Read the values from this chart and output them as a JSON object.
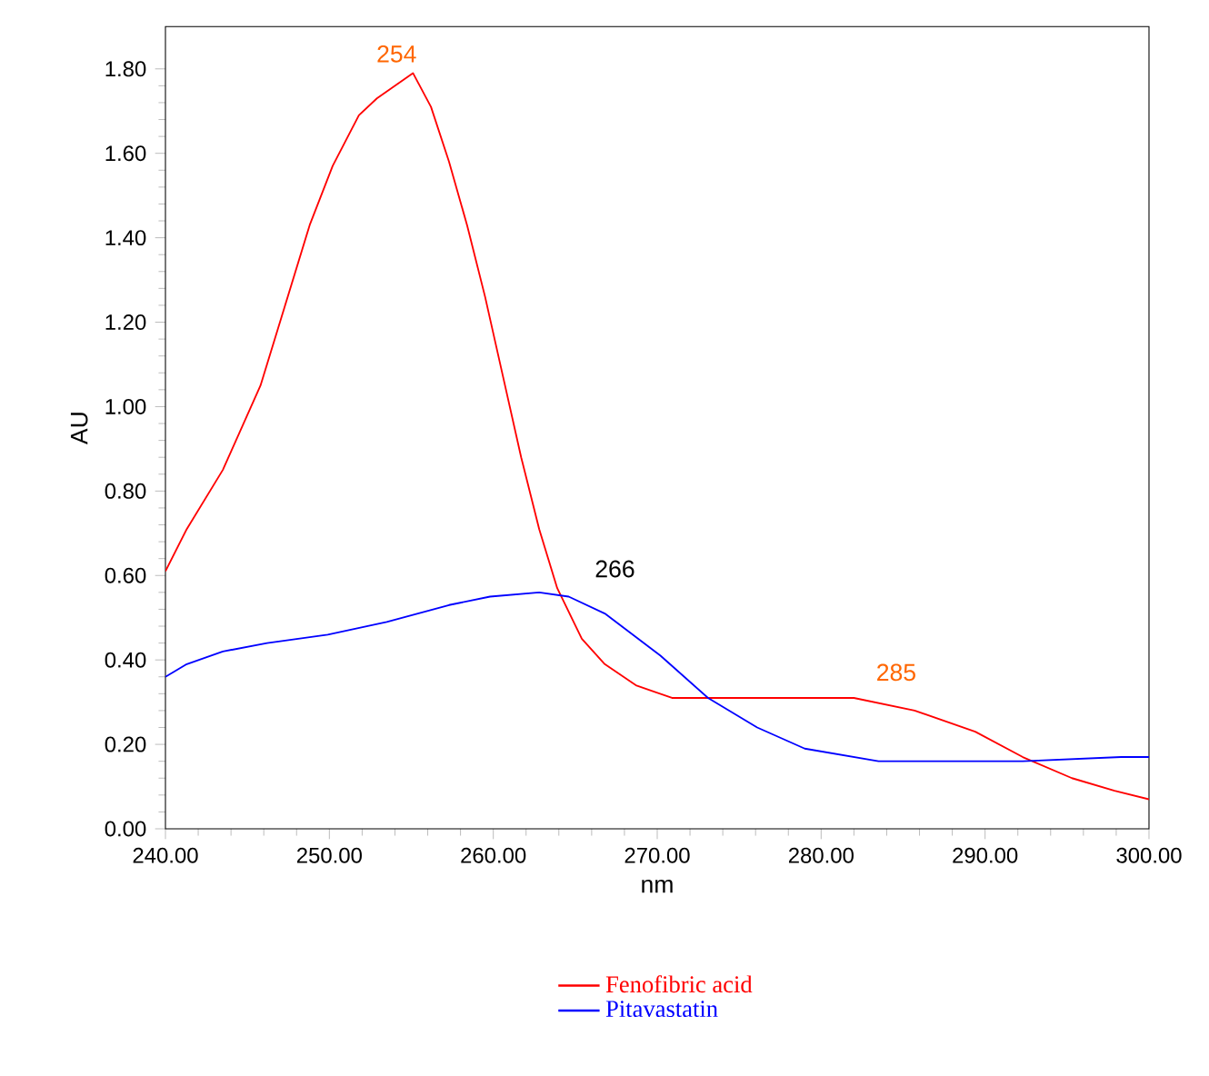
{
  "chart_data": {
    "type": "line",
    "xlabel": "nm",
    "ylabel": "AU",
    "xlim": [
      240,
      300
    ],
    "ylim": [
      0,
      1.9
    ],
    "xticks": [
      {
        "value": 240,
        "label": "240.00"
      },
      {
        "value": 250,
        "label": "250.00"
      },
      {
        "value": 260,
        "label": "260.00"
      },
      {
        "value": 270,
        "label": "270.00"
      },
      {
        "value": 280,
        "label": "280.00"
      },
      {
        "value": 290,
        "label": "290.00"
      },
      {
        "value": 300,
        "label": "300.00"
      }
    ],
    "yticks": [
      {
        "value": 0,
        "label": "0.00"
      },
      {
        "value": 0.2,
        "label": "0.20"
      },
      {
        "value": 0.4,
        "label": "0.40"
      },
      {
        "value": 0.6,
        "label": "0.60"
      },
      {
        "value": 0.8,
        "label": "0.80"
      },
      {
        "value": 1.0,
        "label": "1.00"
      },
      {
        "value": 1.2,
        "label": "1.20"
      },
      {
        "value": 1.4,
        "label": "1.40"
      },
      {
        "value": 1.6,
        "label": "1.60"
      },
      {
        "value": 1.8,
        "label": "1.80"
      }
    ],
    "grid": false,
    "legend": "bottom",
    "marker": "none",
    "line_style": "solid",
    "series": [
      {
        "name": "Fenofibric acid",
        "color": "#ff0000",
        "x": [
          240,
          241.3,
          243.5,
          245.8,
          247.3,
          248.8,
          250.2,
          251.8,
          252.9,
          255.1,
          256.2,
          257.3,
          258.4,
          259.5,
          260.6,
          261.7,
          262.8,
          263.9,
          265.4,
          266.8,
          268.7,
          270.9,
          273.1,
          282.0,
          285.7,
          289.4,
          292.3,
          295.3,
          297.9,
          300
        ],
        "values": [
          0.61,
          0.71,
          0.85,
          1.05,
          1.24,
          1.43,
          1.57,
          1.69,
          1.73,
          1.79,
          1.71,
          1.58,
          1.43,
          1.26,
          1.07,
          0.88,
          0.71,
          0.57,
          0.45,
          0.39,
          0.34,
          0.31,
          0.31,
          0.31,
          0.28,
          0.23,
          0.17,
          0.12,
          0.09,
          0.07
        ]
      },
      {
        "name": "Pitavastatin",
        "color": "#0000ff",
        "x": [
          240,
          241.3,
          243.5,
          246.2,
          249.9,
          253.5,
          257.3,
          259.8,
          262.8,
          264.6,
          266.8,
          270.2,
          273.1,
          276.1,
          279.0,
          282.0,
          283.5,
          292.3,
          298.3,
          300
        ],
        "values": [
          0.36,
          0.39,
          0.42,
          0.44,
          0.46,
          0.49,
          0.53,
          0.55,
          0.56,
          0.55,
          0.51,
          0.41,
          0.31,
          0.24,
          0.19,
          0.17,
          0.16,
          0.16,
          0.17,
          0.17
        ]
      }
    ],
    "annotations": [
      "254",
      "266",
      "285"
    ]
  }
}
